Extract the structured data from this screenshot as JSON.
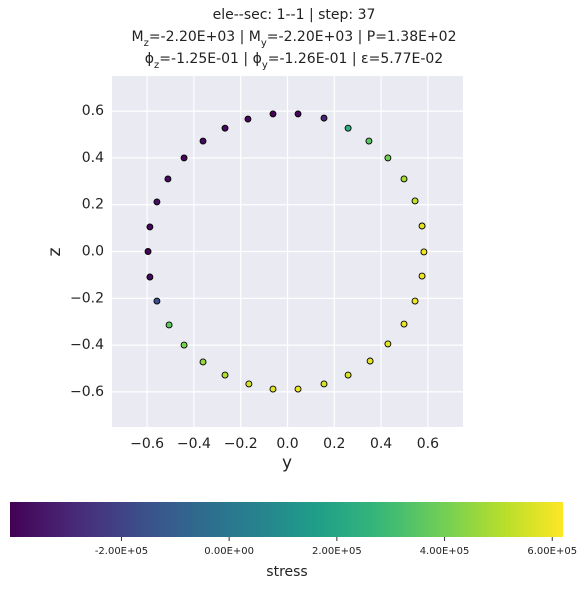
{
  "chart_data": {
    "type": "scatter",
    "title_lines": [
      [
        "ele--sec: 1--1 | step: 37"
      ],
      [
        "M",
        "z",
        "=-2.20E+03 | M",
        "y",
        "=-2.20E+03 | P=1.38E+02"
      ],
      [
        "ϕ",
        "z",
        "=-1.25E-01 | ϕ",
        "y",
        "=-1.26E-01 | ε=5.77E-02"
      ]
    ],
    "xlabel": "y",
    "ylabel": "z",
    "xlim": [
      -0.75,
      0.75
    ],
    "ylim": [
      -0.75,
      0.75
    ],
    "xticks": [
      {
        "value": -0.6,
        "label": "−0.6"
      },
      {
        "value": -0.4,
        "label": "−0.4"
      },
      {
        "value": -0.2,
        "label": "−0.2"
      },
      {
        "value": 0,
        "label": "0.0"
      },
      0.2,
      0.4,
      0.6
    ],
    "yticks": [
      {
        "value": -0.6,
        "label": "−0.6"
      },
      {
        "value": -0.4,
        "label": "−0.4"
      },
      {
        "value": -0.2,
        "label": "−0.2"
      },
      {
        "value": 0,
        "label": "0.0"
      },
      0.2,
      0.4,
      0.6
    ],
    "grid": true,
    "colormap": "viridis",
    "x": [
      -0.062,
      0.045,
      0.156,
      0.259,
      0.348,
      0.429,
      0.498,
      0.545,
      0.575,
      0.583,
      0.575,
      0.545,
      0.498,
      0.429,
      0.353,
      0.259,
      0.156,
      0.045,
      -0.062,
      -0.165,
      -0.267,
      -0.361,
      -0.442,
      -0.506,
      -0.558,
      -0.588,
      -0.596,
      -0.588,
      -0.558,
      -0.511,
      -0.442,
      -0.361,
      -0.267,
      -0.169
    ],
    "y": [
      0.588,
      0.588,
      0.57,
      0.527,
      0.472,
      0.4,
      0.31,
      0.216,
      0.109,
      -0.002,
      -0.105,
      -0.212,
      -0.31,
      -0.395,
      -0.468,
      -0.528,
      -0.566,
      -0.588,
      -0.588,
      -0.566,
      -0.528,
      -0.472,
      -0.4,
      -0.314,
      -0.212,
      -0.109,
      0,
      0.105,
      0.212,
      0.31,
      0.4,
      0.472,
      0.527,
      0.566
    ],
    "stress": [
      -400000,
      -390000,
      -300000,
      240000,
      350000,
      400000,
      480000,
      530000,
      580000,
      600000,
      600000,
      590000,
      590000,
      580000,
      580000,
      560000,
      560000,
      590000,
      580000,
      560000,
      500000,
      460000,
      410000,
      360000,
      -160000,
      -380000,
      -400000,
      -390000,
      -370000,
      -380000,
      -390000,
      -380000,
      -380000,
      -390000
    ],
    "colorbar": {
      "label": "stress",
      "lim": [
        -407000,
        620000
      ],
      "ticks": [
        {
          "value": -200000,
          "label": "-2.00E+05"
        },
        {
          "value": 0,
          "label": "0.00E+00"
        },
        {
          "value": 200000,
          "label": "2.00E+05"
        },
        {
          "value": 400000,
          "label": "4.00E+05"
        },
        {
          "value": 600000,
          "label": "6.00E+05"
        }
      ]
    }
  }
}
